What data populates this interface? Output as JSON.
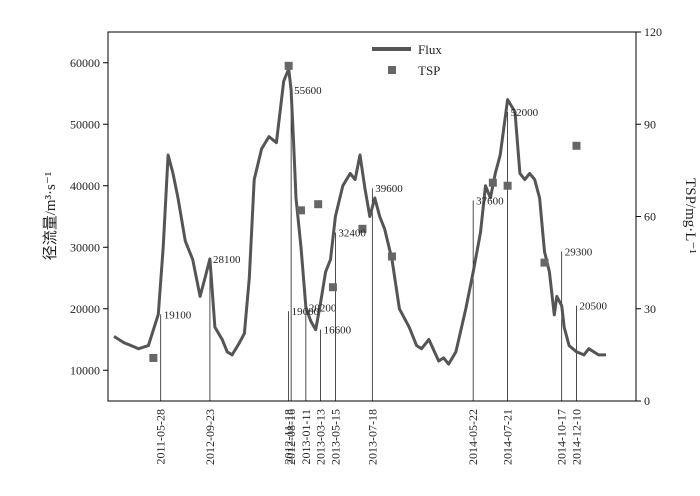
{
  "chart_data": {
    "type": "line",
    "y_left_label": "径流量/m³·s⁻¹",
    "y_right_label": "TSP/mg·L⁻¹",
    "y_left_range": [
      5000,
      65000
    ],
    "y_right_range": [
      0,
      120
    ],
    "y_left_ticks": [
      "10000",
      "20000",
      "30000",
      "40000",
      "50000",
      "60000"
    ],
    "y_right_ticks": [
      "0",
      "30",
      "60",
      "90",
      "120"
    ],
    "legend": [
      {
        "name": "Flux",
        "style": "line"
      },
      {
        "name": "TSP",
        "style": "square"
      }
    ],
    "legend_position": "top-center",
    "sampling_dates": [
      "2011-05-28",
      "2012-09-23",
      "2012-08-16",
      "2012-11-18",
      "2013-01-11",
      "2013-03-13",
      "2013-05-15",
      "2013-07-18",
      "2014-05-22",
      "2014-07-21",
      "2014-10-17",
      "2014-12-10"
    ],
    "flux_series": {
      "name": "Flux",
      "x": [
        0,
        0.02,
        0.05,
        0.07,
        0.09,
        0.1,
        0.11,
        0.12,
        0.13,
        0.145,
        0.16,
        0.175,
        0.185,
        0.195,
        0.205,
        0.22,
        0.23,
        0.24,
        0.255,
        0.265,
        0.275,
        0.285,
        0.3,
        0.315,
        0.33,
        0.345,
        0.355,
        0.36,
        0.365,
        0.37,
        0.38,
        0.39,
        0.4,
        0.41,
        0.42,
        0.43,
        0.44,
        0.45,
        0.465,
        0.48,
        0.49,
        0.5,
        0.51,
        0.52,
        0.53,
        0.54,
        0.55,
        0.565,
        0.58,
        0.6,
        0.615,
        0.625,
        0.64,
        0.66,
        0.67,
        0.68,
        0.695,
        0.715,
        0.73,
        0.745,
        0.755,
        0.765,
        0.775,
        0.785,
        0.8,
        0.815,
        0.825,
        0.835,
        0.845,
        0.855,
        0.865,
        0.875,
        0.885,
        0.895,
        0.9,
        0.91,
        0.915,
        0.925,
        0.94,
        0.955,
        0.965,
        0.975,
        0.985,
        1.0
      ],
      "values": [
        15500,
        14500,
        13500,
        14000,
        19100,
        30000,
        45000,
        42000,
        38000,
        31000,
        28000,
        22000,
        25000,
        28100,
        17000,
        15000,
        13000,
        12500,
        14500,
        16000,
        25000,
        41000,
        46000,
        48000,
        47000,
        57000,
        59000,
        55600,
        47000,
        38000,
        30000,
        20200,
        18000,
        16600,
        21000,
        26000,
        28000,
        35000,
        40000,
        42000,
        41000,
        45000,
        39600,
        35000,
        38000,
        35000,
        33000,
        28000,
        20000,
        17000,
        14000,
        13500,
        15000,
        11500,
        12000,
        11000,
        13000,
        20000,
        26000,
        32400,
        40000,
        38000,
        42000,
        45000,
        54000,
        52000,
        42000,
        41000,
        42000,
        41000,
        38000,
        29300,
        26000,
        19000,
        22000,
        20500,
        17000,
        14000,
        13000,
        12500,
        13500,
        13000,
        12500,
        12500
      ]
    },
    "flux_annotations": [
      {
        "label": "19100",
        "x": 0.095,
        "y": 19100
      },
      {
        "label": "28100",
        "x": 0.195,
        "y": 28100
      },
      {
        "label": "55600",
        "x": 0.36,
        "y": 55600
      },
      {
        "label": "19600",
        "x": 0.355,
        "y": 19600
      },
      {
        "label": "20200",
        "x": 0.39,
        "y": 20200
      },
      {
        "label": "16600",
        "x": 0.42,
        "y": 16600
      },
      {
        "label": "32400",
        "x": 0.45,
        "y": 32400
      },
      {
        "label": "39600",
        "x": 0.525,
        "y": 39600
      },
      {
        "label": "37600",
        "x": 0.73,
        "y": 37600
      },
      {
        "label": "52000",
        "x": 0.8,
        "y": 52000
      },
      {
        "label": "29300",
        "x": 0.91,
        "y": 29300
      },
      {
        "label": "20500",
        "x": 0.94,
        "y": 20500
      }
    ],
    "tsp_series": {
      "name": "TSP",
      "points": [
        {
          "x": 0.08,
          "y": 14
        },
        {
          "x": 0.355,
          "y": 109
        },
        {
          "x": 0.38,
          "y": 62
        },
        {
          "x": 0.415,
          "y": 64
        },
        {
          "x": 0.445,
          "y": 37
        },
        {
          "x": 0.505,
          "y": 56
        },
        {
          "x": 0.565,
          "y": 47
        },
        {
          "x": 0.77,
          "y": 71
        },
        {
          "x": 0.8,
          "y": 70
        },
        {
          "x": 0.875,
          "y": 45
        },
        {
          "x": 0.94,
          "y": 83
        }
      ]
    }
  }
}
